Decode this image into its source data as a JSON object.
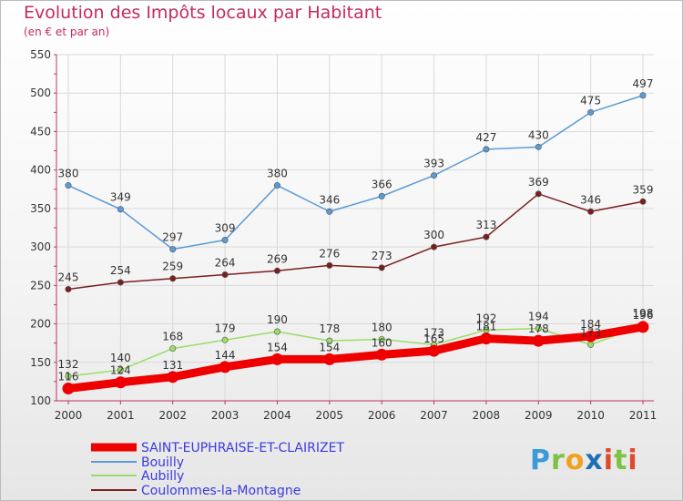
{
  "header": {
    "title": "Evolution des Impôts locaux par Habitant",
    "subtitle": "(en € et par an)"
  },
  "logo": {
    "text": "Proxiti"
  },
  "chart_data": {
    "type": "line",
    "title": "Evolution des Impôts locaux par Habitant",
    "subtitle": "(en € et par an)",
    "xlabel": "",
    "ylabel": "",
    "x": [
      "2000",
      "2001",
      "2002",
      "2003",
      "2004",
      "2005",
      "2006",
      "2007",
      "2008",
      "2009",
      "2010",
      "2011"
    ],
    "ylim": [
      100,
      550
    ],
    "yticks": [
      100,
      150,
      200,
      250,
      300,
      350,
      400,
      450,
      500,
      550
    ],
    "grid": true,
    "legend_position": "bottom-left",
    "series": [
      {
        "name": "SAINT-EUPHRAISE-ET-CLAIRIZET",
        "color": "#ee0000",
        "values": [
          116,
          124,
          131,
          144,
          154,
          154,
          160,
          165,
          181,
          178,
          184,
          196
        ],
        "labels": [
          "116",
          "124",
          "131",
          "144",
          "154",
          "154",
          "160",
          "165",
          "181",
          "178",
          "184",
          "196"
        ]
      },
      {
        "name": "Bouilly",
        "color": "#5b9bd5",
        "values": [
          380,
          349,
          297,
          309,
          380,
          346,
          366,
          393,
          427,
          430,
          475,
          497
        ],
        "labels": [
          "380",
          "349",
          "297",
          "309",
          "380",
          "346",
          "366",
          "393",
          "427",
          "430",
          "475",
          "497"
        ]
      },
      {
        "name": "Aubilly",
        "color": "#99dd66",
        "values": [
          132,
          140,
          168,
          179,
          190,
          178,
          180,
          173,
          192,
          194,
          173,
          198
        ],
        "labels": [
          "132",
          "140",
          "168",
          "179",
          "190",
          "178",
          "180",
          "173",
          "192",
          "194",
          "173",
          "198"
        ]
      },
      {
        "name": "Coulommes-la-Montagne",
        "color": "#7a1f1f",
        "values": [
          245,
          254,
          259,
          264,
          269,
          276,
          273,
          300,
          313,
          369,
          346,
          359
        ],
        "labels": [
          "245",
          "254",
          "259",
          "264",
          "269",
          "276",
          "273",
          "300",
          "313",
          "369",
          "346",
          "359"
        ]
      }
    ]
  }
}
